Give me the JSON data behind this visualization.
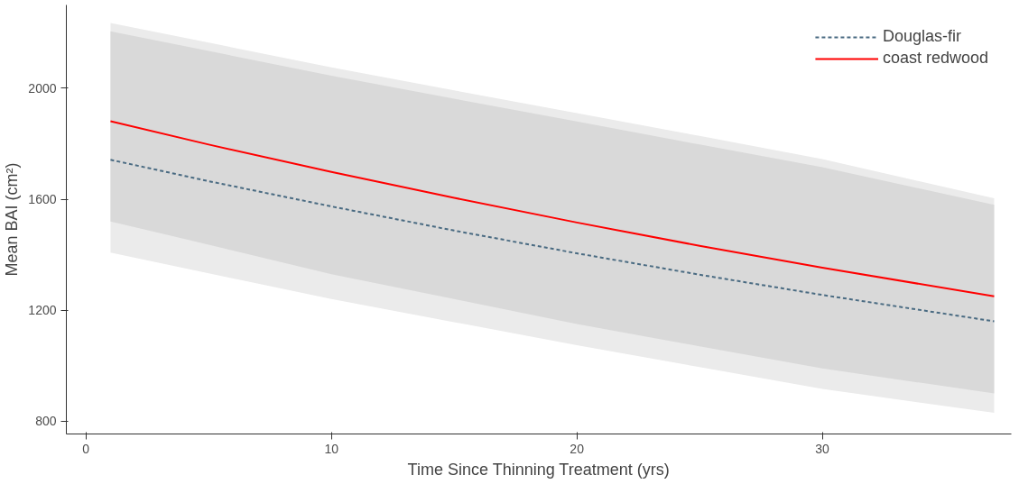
{
  "chart_data": {
    "type": "line",
    "xlabel": "Time Since Thinning Treatment (yrs)",
    "ylabel": "Mean BAI (cm²)",
    "xlim": [
      -0.8,
      37.7
    ],
    "ylim": [
      754,
      2300
    ],
    "xticks": [
      0,
      10,
      20,
      30
    ],
    "yticks": [
      800,
      1200,
      1600,
      2000
    ],
    "grid": false,
    "legend": "top right",
    "series": [
      {
        "name": "Douglas-fir",
        "color": "#4a6b82",
        "line_style": "dashed",
        "x": [
          1,
          5,
          10,
          15,
          20,
          25,
          30,
          37
        ],
        "values": [
          1742,
          1665,
          1574,
          1487,
          1405,
          1328,
          1255,
          1160
        ],
        "lower": [
          1408,
          1333,
          1240,
          1157,
          1074,
          995,
          916,
          830
        ],
        "upper": [
          2235,
          2164,
          2075,
          1992,
          1910,
          1828,
          1745,
          1603
        ]
      },
      {
        "name": "coast redwood",
        "color": "#ff0000",
        "line_style": "solid",
        "x": [
          1,
          5,
          10,
          15,
          20,
          25,
          30,
          37
        ],
        "values": [
          1881,
          1797,
          1698,
          1605,
          1516,
          1432,
          1353,
          1250
        ],
        "lower": [
          1520,
          1436,
          1330,
          1240,
          1150,
          1070,
          990,
          900
        ],
        "upper": [
          2205,
          2134,
          2045,
          1962,
          1880,
          1797,
          1715,
          1580
        ]
      }
    ]
  }
}
